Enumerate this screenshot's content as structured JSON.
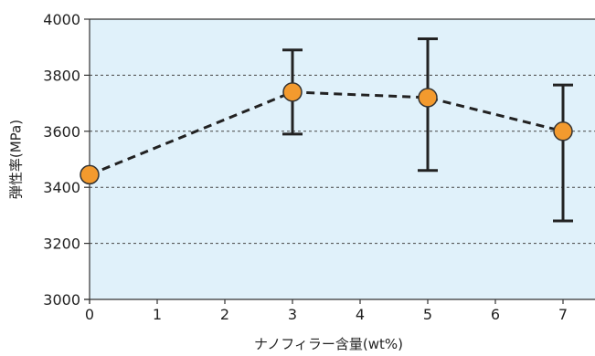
{
  "chart_data": {
    "type": "line",
    "xlabel": "ナノフィラー含量(wt%)",
    "ylabel": "弾性率(MPa)",
    "xlim": [
      0,
      7.3
    ],
    "ylim": [
      3000,
      4000
    ],
    "x_ticks": [
      0,
      1,
      2,
      3,
      4,
      5,
      6,
      7
    ],
    "y_ticks": [
      3000,
      3200,
      3400,
      3600,
      3800,
      4000
    ],
    "grid": "horizontal-dashed",
    "series": [
      {
        "x": [
          0,
          3,
          5,
          7
        ],
        "y": [
          3445,
          3740,
          3720,
          3600
        ],
        "error_low": [
          null,
          3590,
          3460,
          3280
        ],
        "error_high": [
          null,
          3890,
          3930,
          3765
        ]
      }
    ],
    "colors": {
      "plot_background": "#e0f1fa",
      "marker_fill": "#f39a2e",
      "marker_stroke": "#333333",
      "line": "#222222",
      "grid": "#444444"
    }
  }
}
